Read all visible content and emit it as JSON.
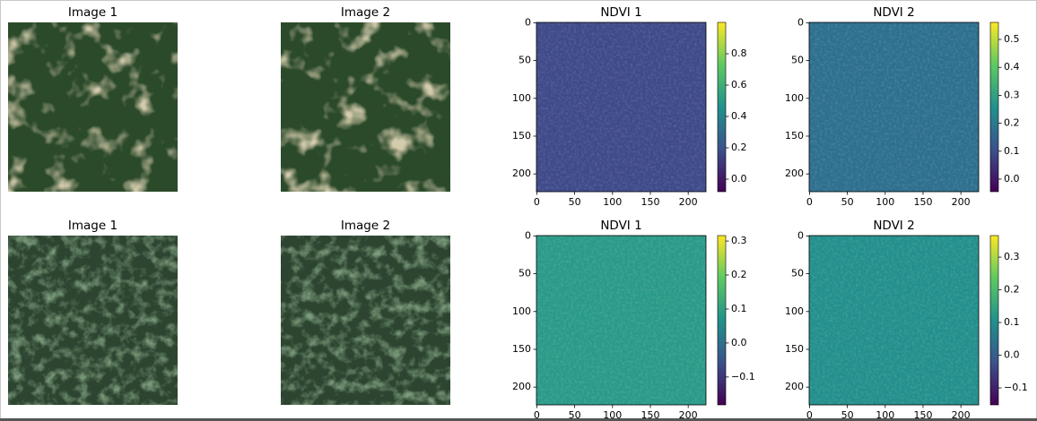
{
  "chart_data": [
    {
      "type": "image",
      "title": "Image 1",
      "scene": "clearings"
    },
    {
      "type": "image",
      "title": "Image 2",
      "scene": "clearings"
    },
    {
      "type": "heatmap",
      "title": "NDVI 1",
      "color": "#3e4a89",
      "xlim": [
        -0.5,
        223.5
      ],
      "ylim": [
        223.5,
        -0.5
      ],
      "xticks": [
        0,
        50,
        100,
        150,
        200
      ],
      "yticks": [
        0,
        50,
        100,
        150,
        200
      ],
      "clim": [
        -0.08,
        1.0
      ],
      "cticks": [
        {
          "value": 0,
          "label": "0.0"
        },
        0.2,
        0.4,
        0.6,
        0.8
      ]
    },
    {
      "type": "heatmap",
      "title": "NDVI 2",
      "color": "#2d6f8e",
      "xlim": [
        -0.5,
        223.5
      ],
      "ylim": [
        223.5,
        -0.5
      ],
      "xticks": [
        0,
        50,
        100,
        150,
        200
      ],
      "yticks": [
        0,
        50,
        100,
        150,
        200
      ],
      "clim": [
        -0.045,
        0.561
      ],
      "cticks": [
        {
          "value": 0,
          "label": "0.0"
        },
        0.1,
        0.2,
        0.3,
        0.4,
        0.5
      ]
    },
    {
      "type": "image",
      "title": "Image 1",
      "scene": "forest"
    },
    {
      "type": "image",
      "title": "Image 2",
      "scene": "forest"
    },
    {
      "type": "heatmap",
      "title": "NDVI 1",
      "color": "#2a9a88",
      "xlim": [
        -0.5,
        223.5
      ],
      "ylim": [
        223.5,
        -0.5
      ],
      "xticks": [
        0,
        50,
        100,
        150,
        200
      ],
      "yticks": [
        0,
        50,
        100,
        150,
        200
      ],
      "clim": [
        -0.182,
        0.316
      ],
      "cticks": [
        {
          "value": -0.1,
          "label": "−0.1"
        },
        {
          "value": 0,
          "label": "0.0"
        },
        0.1,
        0.2,
        0.3
      ]
    },
    {
      "type": "heatmap",
      "title": "NDVI 2",
      "color": "#238f8c",
      "xlim": [
        -0.5,
        223.5
      ],
      "ylim": [
        223.5,
        -0.5
      ],
      "xticks": [
        0,
        50,
        100,
        150,
        200
      ],
      "yticks": [
        0,
        50,
        100,
        150,
        200
      ],
      "clim": [
        -0.152,
        0.366
      ],
      "cticks": [
        {
          "value": -0.1,
          "label": "−0.1"
        },
        {
          "value": 0,
          "label": "0.0"
        },
        0.1,
        0.2,
        0.3
      ]
    }
  ]
}
